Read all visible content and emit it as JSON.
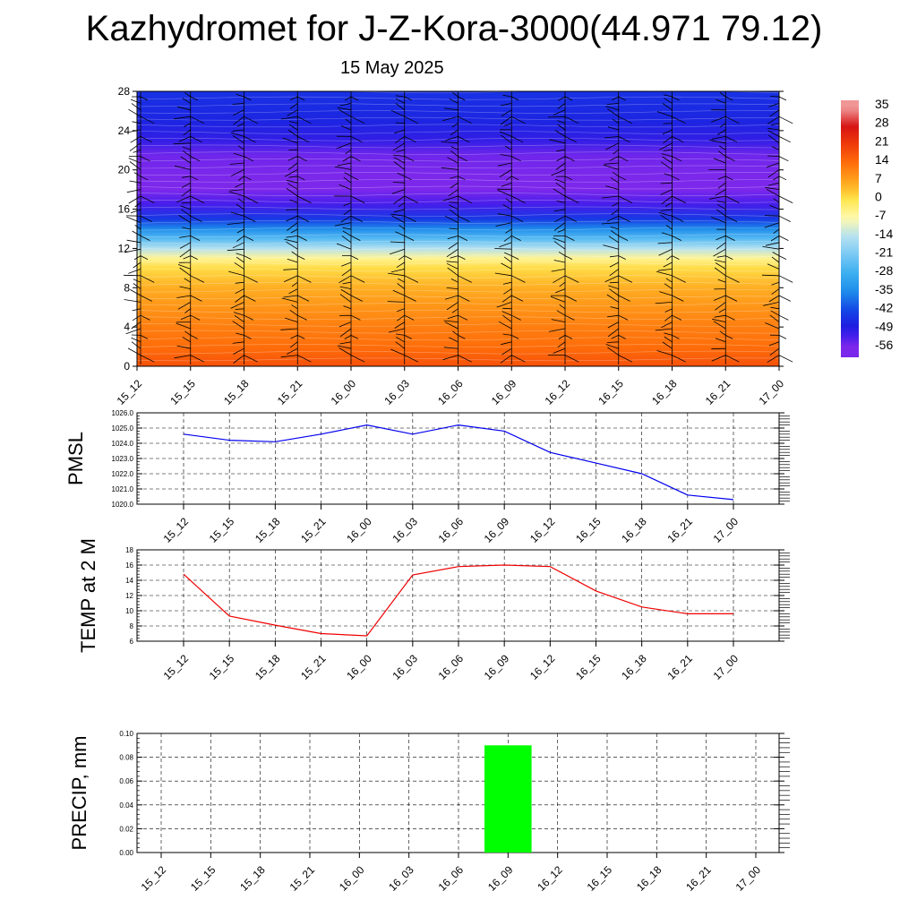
{
  "header": {
    "title": "Kazhydromet for J-Z-Kora-3000(44.971 79.12)",
    "date": "15 May 2025"
  },
  "time_labels": [
    "15_12",
    "15_15",
    "15_18",
    "15_21",
    "16_00",
    "16_03",
    "16_06",
    "16_09",
    "16_12",
    "16_15",
    "16_18",
    "16_21",
    "17_00"
  ],
  "chart_data": [
    {
      "type": "heatmap",
      "title": "Kazhydromet for J-Z-Kora-3000(44.971 79.12)",
      "subtitle": "15 May 2025",
      "x": [
        "15_12",
        "15_15",
        "15_18",
        "15_21",
        "16_00",
        "16_03",
        "16_06",
        "16_09",
        "16_12",
        "16_15",
        "16_18",
        "16_21",
        "17_00"
      ],
      "ylim": [
        0,
        28
      ],
      "y_ticks": [
        0,
        4,
        8,
        12,
        16,
        20,
        24,
        28
      ],
      "colorbar_labels": [
        "35",
        "28",
        "21",
        "14",
        "7",
        "0",
        "-7",
        "-14",
        "-21",
        "-28",
        "-35",
        "-42",
        "-49",
        "-56"
      ],
      "temperature_profile": [
        {
          "height": 0,
          "value": 18
        },
        {
          "height": 2,
          "value": 14
        },
        {
          "height": 4,
          "value": 12
        },
        {
          "height": 6,
          "value": 9
        },
        {
          "height": 8,
          "value": 6
        },
        {
          "height": 10,
          "value": 1
        },
        {
          "height": 11,
          "value": -5
        },
        {
          "height": 12,
          "value": -14
        },
        {
          "height": 13,
          "value": -25
        },
        {
          "height": 14,
          "value": -35
        },
        {
          "height": 15,
          "value": -44
        },
        {
          "height": 16.5,
          "value": -52
        },
        {
          "height": 18,
          "value": -56
        },
        {
          "height": 19.5,
          "value": -58
        },
        {
          "height": 21.5,
          "value": -55
        },
        {
          "height": 23,
          "value": -50
        },
        {
          "height": 25,
          "value": -47
        },
        {
          "height": 28,
          "value": -45
        }
      ],
      "overlay": "wind barbs"
    },
    {
      "type": "line",
      "ylabel": "PMSL",
      "x": [
        "15_12",
        "15_15",
        "15_18",
        "15_21",
        "16_00",
        "16_03",
        "16_06",
        "16_09",
        "16_12",
        "16_15",
        "16_18",
        "16_21",
        "17_00"
      ],
      "series": [
        {
          "values": [
            1024.6,
            1024.2,
            1024.1,
            1024.6,
            1025.2,
            1024.6,
            1025.2,
            1024.8,
            1023.4,
            1022.7,
            1022.0,
            1020.6,
            1020.3
          ]
        }
      ],
      "ylim": [
        1020,
        1026
      ],
      "y_tick_labels": [
        "1020.0",
        "1021.0",
        "1022.0",
        "1023.0",
        "1024.0",
        "1025.0",
        "1026.0"
      ],
      "color": "#0000ee",
      "grid": true
    },
    {
      "type": "line",
      "ylabel": "TEMP at 2 M",
      "x": [
        "15_12",
        "15_15",
        "15_18",
        "15_21",
        "16_00",
        "16_03",
        "16_06",
        "16_09",
        "16_12",
        "16_15",
        "16_18",
        "16_21",
        "17_00"
      ],
      "series": [
        {
          "values": [
            14.8,
            9.3,
            8.1,
            7.0,
            6.7,
            14.7,
            15.8,
            16.0,
            15.8,
            12.6,
            10.5,
            9.6,
            9.6
          ]
        }
      ],
      "ylim": [
        6,
        18
      ],
      "y_tick_labels": [
        "6",
        "8",
        "10",
        "12",
        "14",
        "16",
        "18"
      ],
      "color": "#ee0000",
      "grid": true
    },
    {
      "type": "bar",
      "ylabel": "PRECIP, mm",
      "categories": [
        "15_12",
        "15_15",
        "15_18",
        "15_21",
        "16_00",
        "16_03",
        "16_06",
        "16_09",
        "16_12",
        "16_15",
        "16_18",
        "16_21",
        "17_00"
      ],
      "values": [
        0,
        0,
        0,
        0,
        0,
        0,
        0,
        0.09,
        0,
        0,
        0,
        0,
        0
      ],
      "ylim": [
        0,
        0.1
      ],
      "y_tick_labels": [
        "0.00",
        "0.02",
        "0.04",
        "0.06",
        "0.08",
        "0.10"
      ],
      "color": "#00ff00",
      "grid": true
    }
  ]
}
